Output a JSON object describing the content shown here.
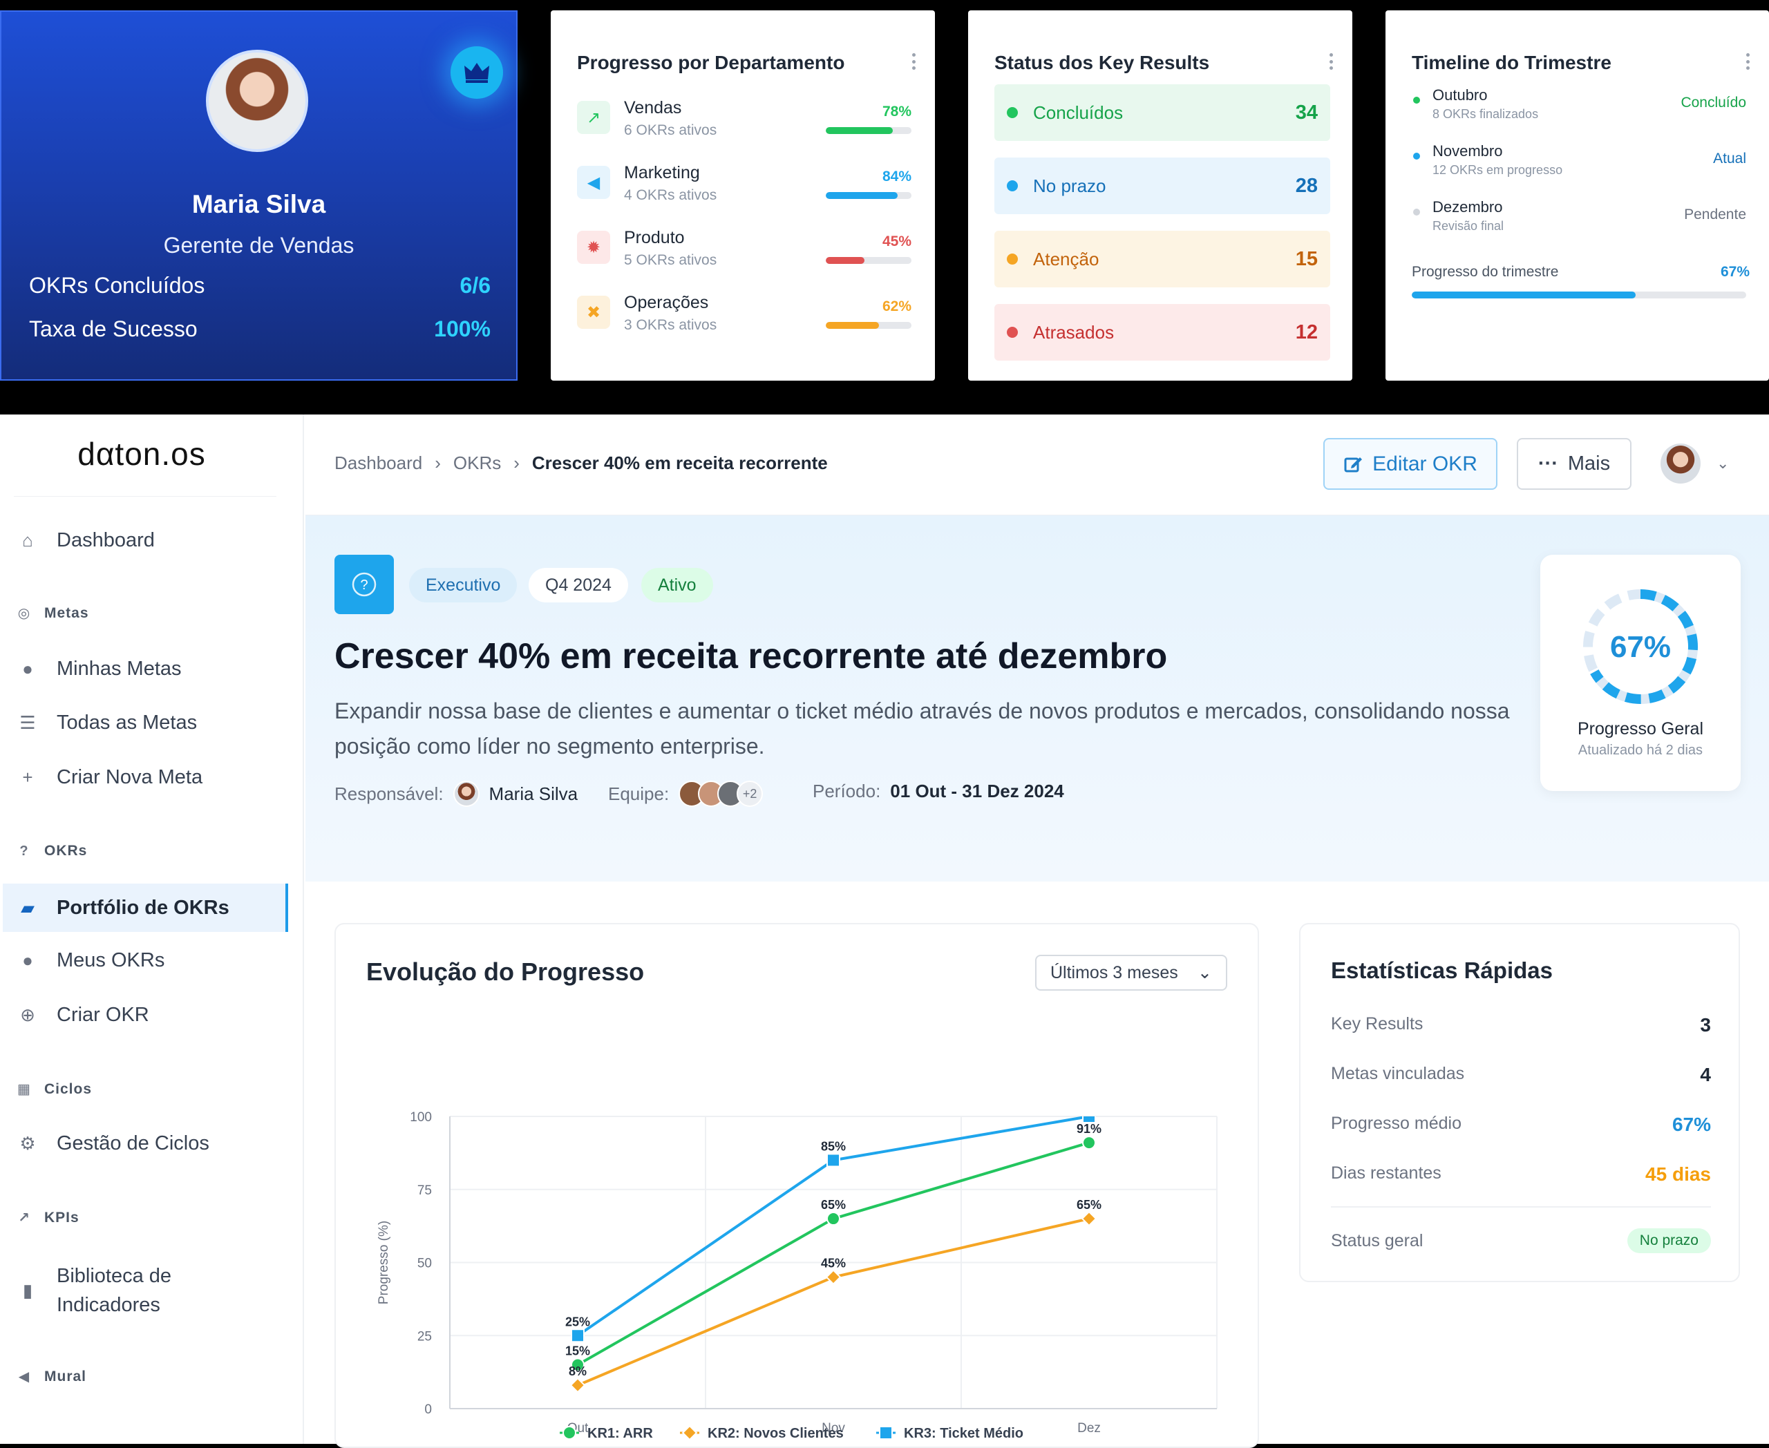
{
  "profile": {
    "name": "Maria Silva",
    "role": "Gerente de Vendas",
    "stats": [
      {
        "label": "OKRs Concluídos",
        "value": "6/6"
      },
      {
        "label": "Taxa de Sucesso",
        "value": "100%"
      }
    ]
  },
  "departments": {
    "title": "Progresso por Departamento",
    "items": [
      {
        "name": "Vendas",
        "sub": "6 OKRs ativos",
        "percent_label": "78%",
        "percent": 78,
        "color": "#22c55e",
        "bg": "#e7f8ee",
        "icon": "chart-line-icon"
      },
      {
        "name": "Marketing",
        "sub": "4 OKRs ativos",
        "percent_label": "84%",
        "percent": 84,
        "color": "#1ea5ec",
        "bg": "#e6f4fd",
        "icon": "megaphone-icon"
      },
      {
        "name": "Produto",
        "sub": "5 OKRs ativos",
        "percent_label": "45%",
        "percent": 45,
        "color": "#e05252",
        "bg": "#fde8e8",
        "icon": "gear-icon"
      },
      {
        "name": "Operações",
        "sub": "3 OKRs ativos",
        "percent_label": "62%",
        "percent": 62,
        "color": "#f5a524",
        "bg": "#fdf1dc",
        "icon": "tools-icon"
      }
    ]
  },
  "kr_status": {
    "title": "Status dos Key Results",
    "items": [
      {
        "label": "Concluídos",
        "count": "34",
        "color": "#16a34a",
        "bg": "#e8f8ee",
        "dot": "#22c55e"
      },
      {
        "label": "No prazo",
        "count": "28",
        "color": "#1570b8",
        "bg": "#e8f4fd",
        "dot": "#1ea5ec"
      },
      {
        "label": "Atenção",
        "count": "15",
        "color": "#c2630c",
        "bg": "#fdf4e3",
        "dot": "#f5a524"
      },
      {
        "label": "Atrasados",
        "count": "12",
        "color": "#c53030",
        "bg": "#fdeaea",
        "dot": "#e05252"
      }
    ]
  },
  "timeline": {
    "title": "Timeline do Trimestre",
    "items": [
      {
        "month": "Outubro",
        "sub": "8 OKRs finalizados",
        "status": "Concluído",
        "dot": "#22c55e",
        "status_color": "#16a34a"
      },
      {
        "month": "Novembro",
        "sub": "12 OKRs em progresso",
        "status": "Atual",
        "dot": "#1ea5ec",
        "status_color": "#1570b8"
      },
      {
        "month": "Dezembro",
        "sub": "Revisão final",
        "status": "Pendente",
        "dot": "#d1d5db",
        "status_color": "#6b7280"
      }
    ],
    "progress_label": "Progresso do trimestre",
    "progress_value": "67%",
    "progress": 67
  },
  "app": {
    "logo": "dαton.os"
  },
  "sidebar": {
    "dashboard": "Dashboard",
    "sections": [
      {
        "title": "Metas",
        "items": [
          "Minhas Metas",
          "Todas as Metas",
          "Criar Nova Meta"
        ]
      },
      {
        "title": "OKRs",
        "items": [
          "Portfólio de OKRs",
          "Meus OKRs",
          "Criar OKR"
        ]
      },
      {
        "title": "Ciclos",
        "items": [
          "Gestão de Ciclos"
        ]
      },
      {
        "title": "KPIs",
        "items": [
          "Biblioteca de",
          "Indicadores"
        ]
      },
      {
        "title": "Mural",
        "items": []
      }
    ]
  },
  "breadcrumb": {
    "items": [
      "Dashboard",
      "OKRs"
    ],
    "current": "Crescer 40% em receita recorrente"
  },
  "toolbar": {
    "edit": "Editar OKR",
    "more": "Mais"
  },
  "okr": {
    "tags": [
      {
        "label": "Executivo"
      },
      {
        "label": "Q4 2024"
      },
      {
        "label": "Ativo"
      }
    ],
    "title": "Crescer 40% em receita recorrente até dezembro",
    "description": "Expandir nossa base de clientes e aumentar o ticket médio através de novos produtos e mercados, consolidando nossa posição como líder no segmento enterprise.",
    "owner_label": "Responsável:",
    "owner": "Maria Silva",
    "team_label": "Equipe:",
    "team_more": "+2",
    "period_label": "Período:",
    "period": "01 Out - 31 Dez 2024"
  },
  "gauge": {
    "value_label": "67%",
    "value": 67,
    "label": "Progresso Geral",
    "updated": "Atualizado há 2 dias",
    "color": "#1ea5ec"
  },
  "chart_panel": {
    "title": "Evolução do Progresso",
    "range": "Últimos 3 meses"
  },
  "chart_data": {
    "type": "line",
    "x": [
      "Out",
      "Nov",
      "Dez"
    ],
    "ylabel": "Progresso (%)",
    "ylim": [
      0,
      100
    ],
    "yticks": [
      0,
      25,
      50,
      75,
      100
    ],
    "grid": true,
    "legend_position": "bottom",
    "series": [
      {
        "name": "KR1: ARR",
        "values": [
          15,
          65,
          91
        ],
        "labels": [
          "15%",
          "65%",
          "91%"
        ],
        "color": "#22c55e",
        "marker": "circle"
      },
      {
        "name": "KR2: Novos Clientes",
        "values": [
          8,
          45,
          65
        ],
        "labels": [
          "8%",
          "45%",
          "65%"
        ],
        "color": "#f5a524",
        "marker": "diamond"
      },
      {
        "name": "KR3: Ticket Médio",
        "values": [
          25,
          85,
          100
        ],
        "labels": [
          "25%",
          "85%",
          ""
        ],
        "color": "#1ea5ec",
        "marker": "square"
      }
    ]
  },
  "stats": {
    "title": "Estatísticas Rápidas",
    "rows": [
      {
        "label": "Key Results",
        "value": "3",
        "color": "#1f2937"
      },
      {
        "label": "Metas vinculadas",
        "value": "4",
        "color": "#1f2937"
      },
      {
        "label": "Progresso médio",
        "value": "67%",
        "color": "#1e8fd8"
      },
      {
        "label": "Dias restantes",
        "value": "45 dias",
        "color": "#f59e0b"
      }
    ],
    "status_label": "Status geral",
    "status_value": "No prazo"
  }
}
